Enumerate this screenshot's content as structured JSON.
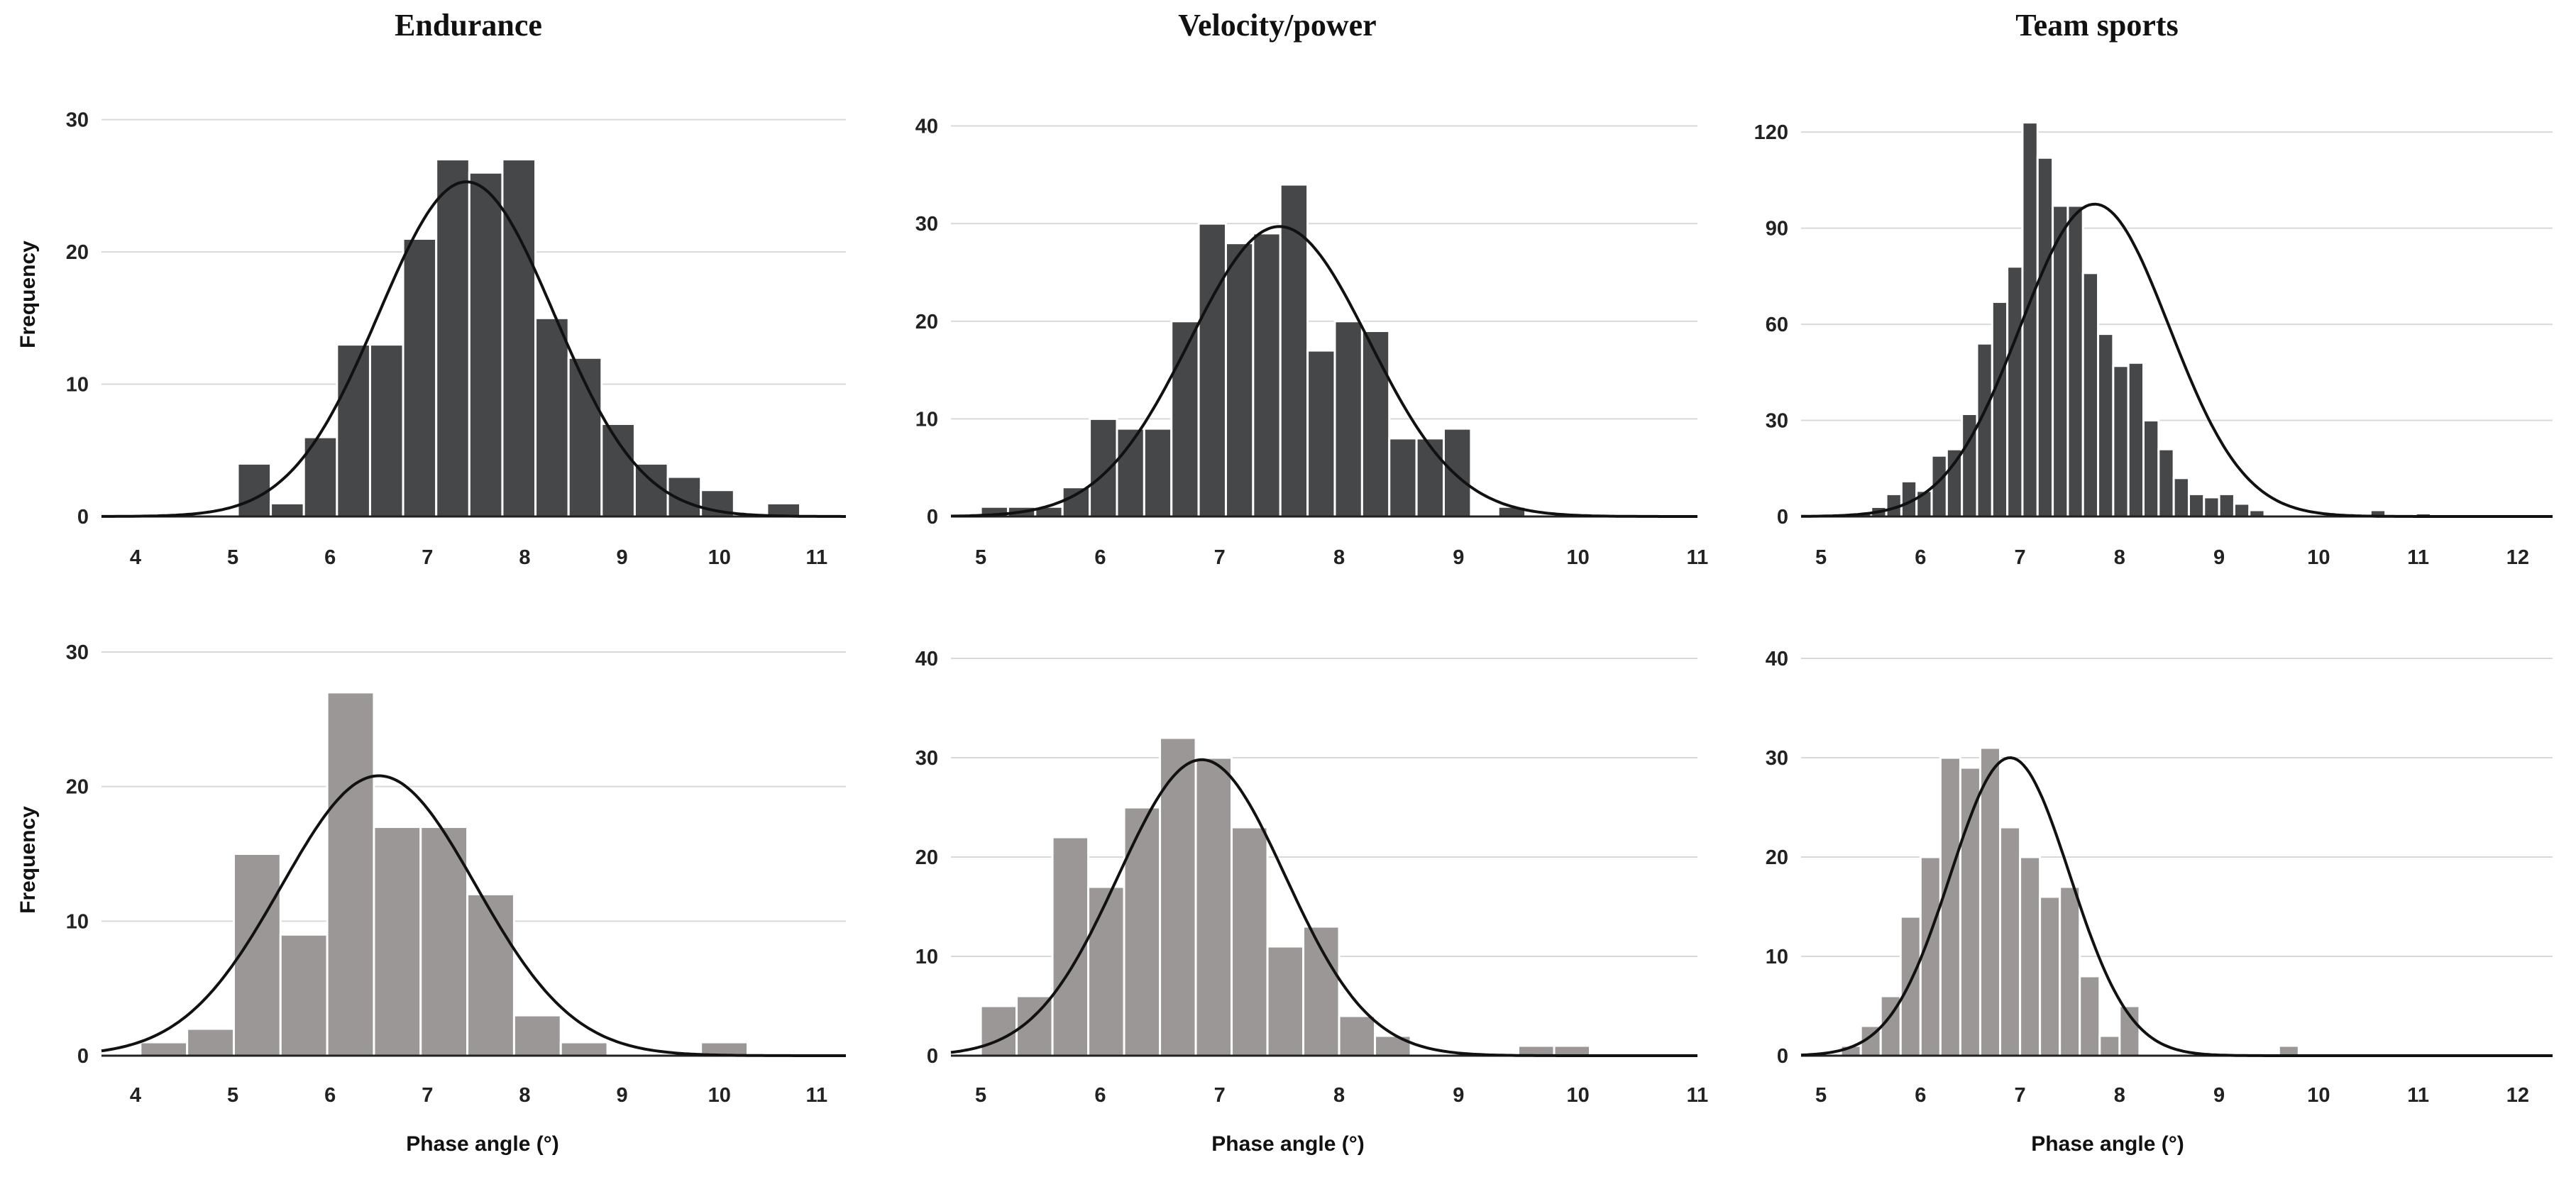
{
  "figure": {
    "column_titles": [
      "Endurance",
      "Velocity/power",
      "Team sports"
    ],
    "ylabel": "Frequency",
    "xlabel": "Phase angle (°)"
  },
  "colors": {
    "top_bars": "#454749",
    "bottom_bars": "#9b9797",
    "curve": "#111111",
    "grid": "#d9d9d9"
  },
  "chart_data": [
    {
      "id": "endurance-top",
      "type": "bar",
      "title": "Endurance",
      "xlabel": "",
      "ylabel": "Frequency",
      "xlim": [
        3.65,
        11.3
      ],
      "ylim": [
        0,
        31
      ],
      "xticks": [
        4,
        5,
        6,
        7,
        8,
        9,
        10,
        11
      ],
      "yticks": [
        0,
        10,
        20,
        30
      ],
      "bin_start": 5.05,
      "bin_width": 0.34,
      "values": [
        4,
        1,
        6,
        13,
        13,
        21,
        27,
        26,
        27,
        15,
        12,
        7,
        4,
        3,
        2,
        0,
        1
      ],
      "curve": {
        "mean": 7.4,
        "sd": 0.9,
        "peak": 25.3
      }
    },
    {
      "id": "velocity-top",
      "type": "bar",
      "title": "Velocity/power",
      "xlabel": "",
      "ylabel": "",
      "xlim": [
        4.75,
        11.0
      ],
      "ylim": [
        0,
        42
      ],
      "xticks": [
        5,
        6,
        7,
        8,
        9,
        10,
        11
      ],
      "yticks": [
        0,
        10,
        20,
        30,
        40
      ],
      "bin_start": 5.0,
      "bin_width": 0.228,
      "values": [
        1,
        1,
        1,
        3,
        10,
        9,
        9,
        20,
        30,
        28,
        29,
        34,
        17,
        20,
        19,
        8,
        8,
        9,
        0,
        1
      ],
      "curve": {
        "mean": 7.5,
        "sd": 0.75,
        "peak": 29.7
      }
    },
    {
      "id": "team-top",
      "type": "bar",
      "title": "Team sports",
      "xlabel": "",
      "ylabel": "",
      "xlim": [
        4.8,
        12.35
      ],
      "ylim": [
        0,
        128
      ],
      "xticks": [
        5,
        6,
        7,
        8,
        9,
        10,
        11,
        12
      ],
      "yticks": [
        0,
        30,
        60,
        90,
        120
      ],
      "bin_start": 5.2,
      "bin_width": 0.152,
      "values": [
        1,
        1,
        3,
        7,
        11,
        8,
        19,
        21,
        32,
        54,
        67,
        78,
        123,
        112,
        97,
        97,
        76,
        57,
        47,
        48,
        30,
        21,
        12,
        7,
        6,
        7,
        4,
        2,
        0,
        0,
        0,
        0,
        0,
        0,
        0,
        2,
        0,
        0,
        1
      ],
      "curve": {
        "mean": 7.75,
        "sd": 0.75,
        "peak": 97.5
      }
    },
    {
      "id": "endurance-bottom",
      "type": "bar",
      "title": "",
      "xlabel": "Phase angle (°)",
      "ylabel": "Frequency",
      "xlim": [
        3.65,
        11.3
      ],
      "ylim": [
        0,
        31
      ],
      "xticks": [
        4,
        5,
        6,
        7,
        8,
        9,
        10,
        11
      ],
      "yticks": [
        0,
        10,
        20,
        30
      ],
      "bin_start": 4.05,
      "bin_width": 0.48,
      "values": [
        1,
        2,
        15,
        9,
        27,
        17,
        17,
        12,
        3,
        1,
        0,
        0,
        1
      ],
      "curve": {
        "mean": 6.5,
        "sd": 1.0,
        "peak": 20.8
      }
    },
    {
      "id": "velocity-bottom",
      "type": "bar",
      "title": "",
      "xlabel": "Phase angle (°)",
      "ylabel": "",
      "xlim": [
        4.75,
        11.0
      ],
      "ylim": [
        0,
        42
      ],
      "xticks": [
        5,
        6,
        7,
        8,
        9,
        10,
        11
      ],
      "yticks": [
        0,
        10,
        20,
        30,
        40
      ],
      "bin_start": 5.0,
      "bin_width": 0.3,
      "values": [
        5,
        6,
        22,
        17,
        25,
        32,
        30,
        23,
        11,
        13,
        4,
        2,
        0,
        0,
        0,
        1,
        1
      ],
      "curve": {
        "mean": 6.85,
        "sd": 0.7,
        "peak": 29.8
      }
    },
    {
      "id": "team-bottom",
      "type": "bar",
      "title": "",
      "xlabel": "Phase angle (°)",
      "ylabel": "",
      "xlim": [
        4.8,
        12.35
      ],
      "ylim": [
        0,
        42
      ],
      "xticks": [
        5,
        6,
        7,
        8,
        9,
        10,
        11,
        12
      ],
      "yticks": [
        0,
        10,
        20,
        30,
        40
      ],
      "bin_start": 5.2,
      "bin_width": 0.2,
      "values": [
        1,
        3,
        6,
        14,
        20,
        30,
        29,
        31,
        23,
        20,
        16,
        17,
        8,
        2,
        5,
        0,
        0,
        0,
        0,
        0,
        0,
        0,
        1
      ],
      "curve": {
        "mean": 6.9,
        "sd": 0.6,
        "peak": 30.0
      }
    }
  ]
}
